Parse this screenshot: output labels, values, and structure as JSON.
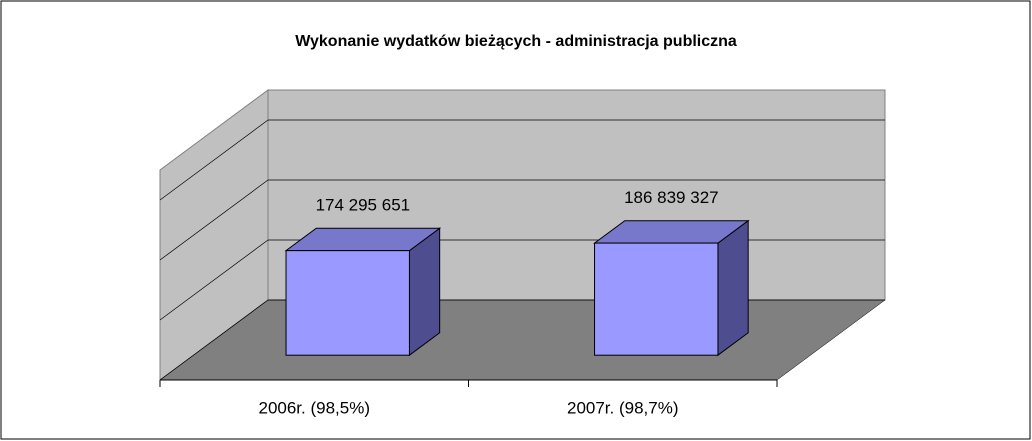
{
  "chart_data": {
    "type": "bar3d",
    "title": "Wykonanie wydatków bieżących - administracja publiczna",
    "categories": [
      "2006r. (98,5%)",
      "2007r. (98,7%)"
    ],
    "values": [
      174295651,
      186839327
    ],
    "value_labels": [
      "174 295 651",
      "186 839 327"
    ],
    "color": "#9999ff",
    "ylim": [
      0,
      350000000
    ],
    "yticks": [
      0,
      100000000,
      200000000,
      300000000
    ],
    "grid": true
  }
}
